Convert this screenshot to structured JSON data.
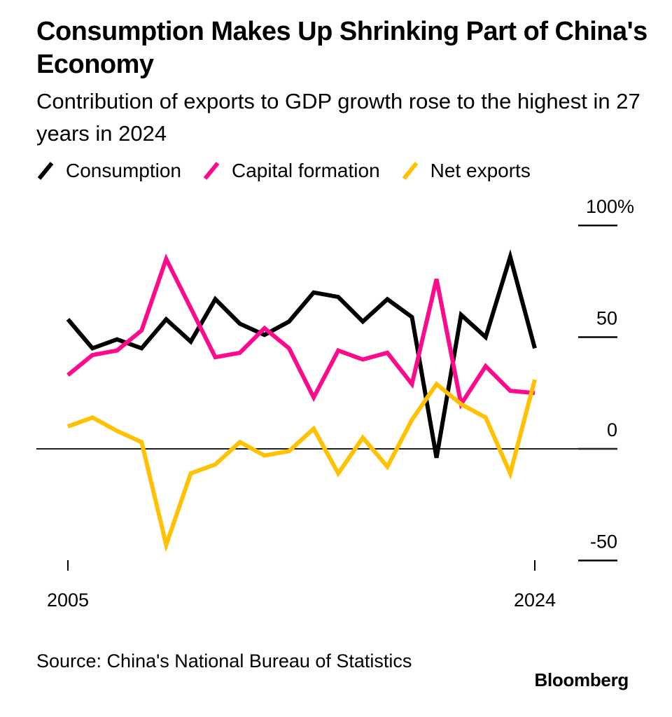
{
  "header": {
    "title": "Consumption Makes Up Shrinking Part of China's Economy",
    "subtitle": "Contribution of exports to GDP growth rose to the highest in 27 years in 2024"
  },
  "legend": [
    {
      "label": "Consumption",
      "color": "#000000",
      "icon": "line-slash-icon"
    },
    {
      "label": "Capital formation",
      "color": "#FF0A8C",
      "icon": "line-slash-icon"
    },
    {
      "label": "Net exports",
      "color": "#FFC100",
      "icon": "line-slash-icon"
    }
  ],
  "footer": {
    "source": "Source: China's National Bureau of Statistics",
    "brand": "Bloomberg"
  },
  "chart_data": {
    "type": "line",
    "title": "Consumption Makes Up Shrinking Part of China's Economy",
    "subtitle": "Contribution of exports to GDP growth rose to the highest in 27 years in 2024",
    "xlabel": "",
    "ylabel": "",
    "x": [
      2005,
      2006,
      2007,
      2008,
      2009,
      2010,
      2011,
      2012,
      2013,
      2014,
      2015,
      2016,
      2017,
      2018,
      2019,
      2020,
      2021,
      2022,
      2023,
      2024
    ],
    "x_tick_labels": [
      "2005",
      "2024"
    ],
    "y_ticks": [
      100,
      50,
      0,
      -50
    ],
    "y_tick_labels": [
      "100%",
      "50",
      "0",
      "-50"
    ],
    "ylim": [
      -50,
      100
    ],
    "y_axis_side": "right",
    "grid": false,
    "zero_line": true,
    "legend_position": "top-left",
    "series": [
      {
        "name": "Consumption",
        "color": "#000000",
        "values": [
          58,
          45,
          49,
          45,
          58,
          48,
          67,
          56,
          51,
          57,
          70,
          68,
          57,
          67,
          59,
          -4,
          60,
          50,
          86,
          45
        ]
      },
      {
        "name": "Capital formation",
        "color": "#FF0A8C",
        "values": [
          33,
          42,
          44,
          53,
          85,
          63,
          41,
          43,
          54,
          45,
          23,
          44,
          40,
          43,
          29,
          76,
          20,
          37,
          26,
          25
        ]
      },
      {
        "name": "Net exports",
        "color": "#FFC100",
        "values": [
          10,
          14,
          8,
          3,
          -43,
          -11,
          -7,
          3,
          -3,
          -1,
          9,
          -11,
          5,
          -8,
          13,
          29,
          20,
          14,
          -11,
          31
        ]
      }
    ]
  }
}
